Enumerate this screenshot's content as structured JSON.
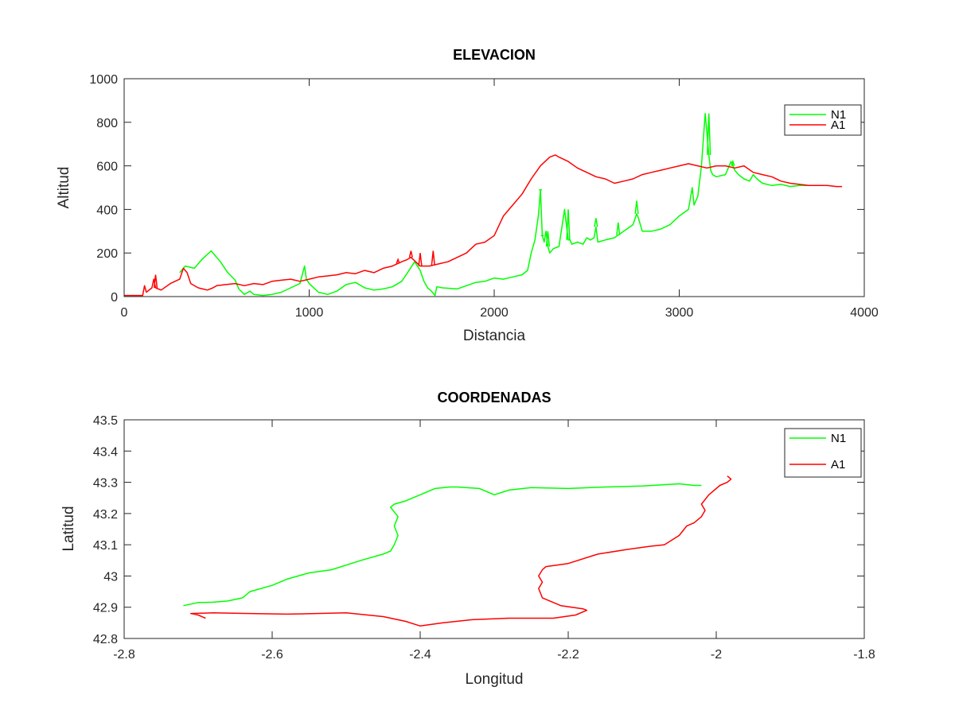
{
  "chart_data": [
    {
      "type": "line",
      "title": "ELEVACION",
      "xlabel": "Distancia",
      "ylabel": "Altitud",
      "xlim": [
        0,
        4000
      ],
      "ylim": [
        0,
        1000
      ],
      "xticks": [
        0,
        1000,
        2000,
        3000,
        4000
      ],
      "yticks": [
        0,
        200,
        400,
        600,
        800,
        1000
      ],
      "grid": false,
      "legend": "top-right",
      "series": [
        {
          "name": "N1",
          "color": "#00ff00",
          "x": [
            300,
            330,
            380,
            420,
            470,
            520,
            560,
            600,
            620,
            650,
            680,
            700,
            750,
            800,
            850,
            900,
            950,
            975,
            985,
            1000,
            1050,
            1100,
            1150,
            1200,
            1250,
            1300,
            1350,
            1400,
            1450,
            1500,
            1540,
            1570,
            1600,
            1620,
            1640,
            1660,
            1680,
            1690,
            1720,
            1800,
            1850,
            1900,
            1950,
            2000,
            2050,
            2100,
            2150,
            2180,
            2200,
            2220,
            2240,
            2250,
            2260,
            2270,
            2280,
            2290,
            2300,
            2320,
            2350,
            2380,
            2400,
            2410,
            2420,
            2450,
            2480,
            2500,
            2520,
            2540,
            2550,
            2560,
            2600,
            2650,
            2700,
            2750,
            2770,
            2780,
            2800,
            2850,
            2900,
            2950,
            3000,
            3050,
            3070,
            3080,
            3100,
            3120,
            3140,
            3160,
            3170,
            3180,
            3200,
            3250,
            3280,
            3300,
            3320,
            3350,
            3380,
            3400,
            3420,
            3450,
            3500,
            3550,
            3600,
            3650,
            3700
          ],
          "y": [
            110,
            140,
            130,
            170,
            210,
            160,
            110,
            75,
            35,
            10,
            25,
            10,
            5,
            10,
            20,
            40,
            60,
            140,
            80,
            60,
            20,
            10,
            25,
            55,
            65,
            40,
            30,
            35,
            45,
            70,
            120,
            160,
            120,
            70,
            40,
            25,
            5,
            45,
            40,
            35,
            50,
            65,
            70,
            85,
            80,
            90,
            100,
            120,
            200,
            260,
            380,
            490,
            280,
            250,
            300,
            230,
            200,
            220,
            230,
            400,
            260,
            260,
            240,
            250,
            240,
            270,
            260,
            270,
            320,
            250,
            260,
            270,
            300,
            330,
            380,
            360,
            300,
            300,
            310,
            330,
            370,
            400,
            500,
            420,
            460,
            600,
            840,
            650,
            580,
            560,
            550,
            560,
            620,
            580,
            560,
            540,
            530,
            560,
            540,
            520,
            510,
            515,
            505,
            510,
            510
          ],
          "spikes": [
            [
              2250,
              490
            ],
            [
              2260,
              280
            ],
            [
              2290,
              300
            ],
            [
              2400,
              400
            ],
            [
              2550,
              360
            ],
            [
              2670,
              340
            ],
            [
              2770,
              440
            ],
            [
              3160,
              840
            ],
            [
              3290,
              620
            ]
          ]
        },
        {
          "name": "A1",
          "color": "#ff0000",
          "x": [
            0,
            50,
            100,
            110,
            120,
            150,
            160,
            170,
            200,
            250,
            300,
            320,
            340,
            360,
            400,
            450,
            480,
            500,
            550,
            600,
            650,
            700,
            750,
            800,
            850,
            900,
            950,
            1000,
            1050,
            1100,
            1150,
            1200,
            1250,
            1300,
            1350,
            1400,
            1450,
            1500,
            1530,
            1550,
            1600,
            1650,
            1700,
            1750,
            1800,
            1850,
            1900,
            1950,
            2000,
            2050,
            2100,
            2150,
            2200,
            2250,
            2300,
            2330,
            2350,
            2400,
            2450,
            2500,
            2550,
            2600,
            2650,
            2700,
            2750,
            2800,
            2850,
            2900,
            2950,
            3000,
            3050,
            3100,
            3150,
            3200,
            3250,
            3300,
            3350,
            3400,
            3450,
            3500,
            3550,
            3600,
            3650,
            3700,
            3750,
            3800,
            3850,
            3880
          ],
          "y": [
            5,
            5,
            5,
            50,
            20,
            40,
            80,
            40,
            30,
            60,
            80,
            130,
            110,
            60,
            40,
            30,
            40,
            50,
            55,
            60,
            50,
            60,
            55,
            70,
            75,
            80,
            70,
            80,
            90,
            95,
            100,
            110,
            105,
            120,
            110,
            130,
            140,
            160,
            170,
            180,
            140,
            140,
            150,
            160,
            180,
            200,
            240,
            250,
            280,
            370,
            420,
            470,
            540,
            600,
            640,
            650,
            640,
            620,
            590,
            570,
            550,
            540,
            520,
            530,
            540,
            560,
            570,
            580,
            590,
            600,
            610,
            600,
            590,
            600,
            600,
            590,
            600,
            570,
            560,
            550,
            530,
            520,
            515,
            510,
            510,
            510,
            505,
            505
          ],
          "spikes": [
            [
              170,
              100
            ],
            [
              1480,
              170
            ],
            [
              1550,
              210
            ],
            [
              1600,
              200
            ],
            [
              1670,
              210
            ]
          ]
        }
      ]
    },
    {
      "type": "line",
      "title": "COORDENADAS",
      "xlabel": "Longitud",
      "ylabel": "Latitud",
      "xlim": [
        -2.8,
        -1.8
      ],
      "ylim": [
        42.8,
        43.5
      ],
      "xticks": [
        -2.8,
        -2.6,
        -2.4,
        -2.2,
        -2.0,
        -1.8
      ],
      "yticks": [
        42.8,
        42.9,
        43.0,
        43.1,
        43.2,
        43.3,
        43.4,
        43.5
      ],
      "grid": false,
      "legend": "top-right",
      "series": [
        {
          "name": "N1",
          "color": "#00ff00",
          "x": [
            -2.72,
            -2.71,
            -2.7,
            -2.68,
            -2.66,
            -2.64,
            -2.63,
            -2.6,
            -2.58,
            -2.55,
            -2.52,
            -2.48,
            -2.45,
            -2.44,
            -2.435,
            -2.43,
            -2.435,
            -2.43,
            -2.44,
            -2.435,
            -2.42,
            -2.4,
            -2.38,
            -2.36,
            -2.35,
            -2.32,
            -2.3,
            -2.28,
            -2.25,
            -2.2,
            -2.15,
            -2.1,
            -2.05,
            -2.03,
            -2.02
          ],
          "x_note": "",
          "y": [
            42.905,
            42.91,
            42.915,
            42.916,
            42.92,
            42.93,
            42.95,
            42.97,
            42.99,
            43.01,
            43.02,
            43.05,
            43.07,
            43.08,
            43.1,
            43.13,
            43.16,
            43.19,
            43.22,
            43.23,
            43.24,
            43.26,
            43.28,
            43.285,
            43.285,
            43.28,
            43.26,
            43.275,
            43.283,
            43.28,
            43.285,
            43.288,
            43.295,
            43.29,
            43.29
          ]
        },
        {
          "name": "A1",
          "color": "#ff0000",
          "x": [
            -2.69,
            -2.7,
            -2.71,
            -2.68,
            -2.63,
            -2.58,
            -2.5,
            -2.45,
            -2.42,
            -2.4,
            -2.37,
            -2.33,
            -2.28,
            -2.22,
            -2.19,
            -2.175,
            -2.18,
            -2.21,
            -2.235,
            -2.24,
            -2.235,
            -2.24,
            -2.235,
            -2.23,
            -2.2,
            -2.16,
            -2.12,
            -2.09,
            -2.07,
            -2.05,
            -2.04,
            -2.03,
            -2.02,
            -2.015,
            -2.02,
            -2.01,
            -1.995,
            -1.985,
            -1.98,
            -1.985
          ],
          "y": [
            42.865,
            42.875,
            42.88,
            42.882,
            42.88,
            42.878,
            42.882,
            42.87,
            42.855,
            42.84,
            42.85,
            42.86,
            42.865,
            42.865,
            42.875,
            42.89,
            42.895,
            42.905,
            42.93,
            42.96,
            42.98,
            43.0,
            43.02,
            43.03,
            43.04,
            43.07,
            43.085,
            43.095,
            43.1,
            43.13,
            43.16,
            43.17,
            43.19,
            43.21,
            43.23,
            43.26,
            43.29,
            43.3,
            43.31,
            43.32
          ]
        }
      ]
    }
  ]
}
